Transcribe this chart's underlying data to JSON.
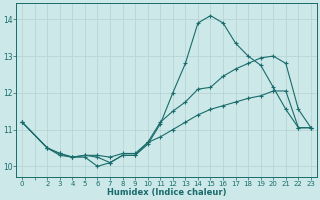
{
  "xlabel": "Humidex (Indice chaleur)",
  "background_color": "#cce8e8",
  "grid_color": "#b8d4d4",
  "line_color": "#1a6b6b",
  "xlim": [
    -0.5,
    23.5
  ],
  "ylim": [
    9.7,
    14.45
  ],
  "yticks": [
    10,
    11,
    12,
    13,
    14
  ],
  "xtick_labels": [
    "0",
    "",
    "2",
    "3",
    "4",
    "5",
    "6",
    "7",
    "8",
    "9",
    "10",
    "11",
    "12",
    "13",
    "14",
    "15",
    "16",
    "17",
    "18",
    "19",
    "20",
    "21",
    "22",
    "23"
  ],
  "xtick_pos": [
    0,
    1,
    2,
    3,
    4,
    5,
    6,
    7,
    8,
    9,
    10,
    11,
    12,
    13,
    14,
    15,
    16,
    17,
    18,
    19,
    20,
    21,
    22,
    23
  ],
  "series": [
    {
      "x": [
        0,
        2,
        3,
        4,
        5,
        6,
        7,
        8,
        9,
        10,
        11,
        12,
        13,
        14,
        15,
        16,
        17,
        18,
        19,
        20,
        21,
        22,
        23
      ],
      "y": [
        11.2,
        10.5,
        10.3,
        10.25,
        10.25,
        10.0,
        10.1,
        10.3,
        10.3,
        10.6,
        11.15,
        12.0,
        12.8,
        13.9,
        14.1,
        13.9,
        13.35,
        13.0,
        12.75,
        12.15,
        11.55,
        11.05,
        11.05
      ]
    },
    {
      "x": [
        0,
        2,
        3,
        4,
        5,
        6,
        7,
        8,
        9,
        10,
        11,
        12,
        13,
        14,
        15,
        16,
        17,
        18,
        19,
        20,
        21,
        22,
        23
      ],
      "y": [
        11.2,
        10.5,
        10.35,
        10.25,
        10.3,
        10.3,
        10.25,
        10.35,
        10.35,
        10.65,
        11.2,
        11.5,
        11.75,
        12.1,
        12.15,
        12.45,
        12.65,
        12.8,
        12.95,
        13.0,
        12.8,
        11.55,
        11.05
      ]
    },
    {
      "x": [
        0,
        2,
        3,
        4,
        5,
        6,
        7,
        8,
        9,
        10,
        11,
        12,
        13,
        14,
        15,
        16,
        17,
        18,
        19,
        20,
        21,
        22,
        23
      ],
      "y": [
        11.2,
        10.5,
        10.35,
        10.25,
        10.3,
        10.25,
        10.1,
        10.3,
        10.3,
        10.65,
        10.8,
        11.0,
        11.2,
        11.4,
        11.55,
        11.65,
        11.75,
        11.85,
        11.92,
        12.05,
        12.05,
        11.05,
        11.05
      ]
    }
  ]
}
